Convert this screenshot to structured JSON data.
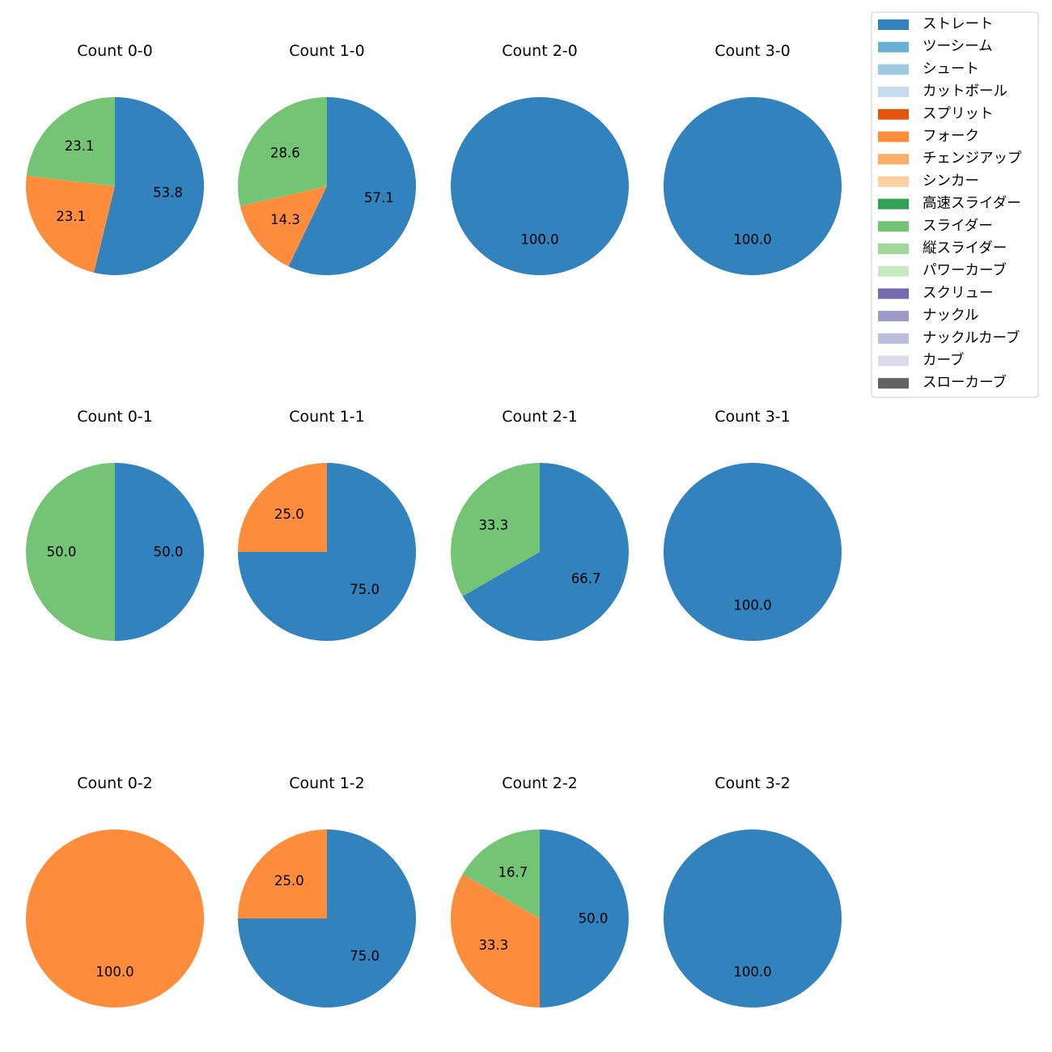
{
  "chart_data": {
    "type": "pie",
    "legend": {
      "placement": "top-right",
      "entries": [
        {
          "label": "ストレート",
          "color": "#3182bd"
        },
        {
          "label": "ツーシーム",
          "color": "#6baed6"
        },
        {
          "label": "シュート",
          "color": "#9ecae1"
        },
        {
          "label": "カットボール",
          "color": "#c6dbef"
        },
        {
          "label": "スプリット",
          "color": "#e6550d"
        },
        {
          "label": "フォーク",
          "color": "#fd8d3c"
        },
        {
          "label": "チェンジアップ",
          "color": "#fdae6b"
        },
        {
          "label": "シンカー",
          "color": "#fdd0a2"
        },
        {
          "label": "高速スライダー",
          "color": "#31a354"
        },
        {
          "label": "スライダー",
          "color": "#74c476"
        },
        {
          "label": "縦スライダー",
          "color": "#a1d99b"
        },
        {
          "label": "パワーカーブ",
          "color": "#c7e9c0"
        },
        {
          "label": "スクリュー",
          "color": "#756bb1"
        },
        {
          "label": "ナックル",
          "color": "#9e9ac8"
        },
        {
          "label": "ナックルカーブ",
          "color": "#bcbddc"
        },
        {
          "label": "カーブ",
          "color": "#dadaeb"
        },
        {
          "label": "スローカーブ",
          "color": "#636363"
        }
      ]
    },
    "charts": [
      {
        "title": "Count 0-0",
        "slices": [
          {
            "pitch": "ストレート",
            "value": 53.8,
            "label": "53.8"
          },
          {
            "pitch": "フォーク",
            "value": 23.1,
            "label": "23.1"
          },
          {
            "pitch": "スライダー",
            "value": 23.1,
            "label": "23.1"
          }
        ]
      },
      {
        "title": "Count 1-0",
        "slices": [
          {
            "pitch": "ストレート",
            "value": 57.1,
            "label": "57.1"
          },
          {
            "pitch": "フォーク",
            "value": 14.3,
            "label": "14.3"
          },
          {
            "pitch": "スライダー",
            "value": 28.6,
            "label": "28.6"
          }
        ]
      },
      {
        "title": "Count 2-0",
        "slices": [
          {
            "pitch": "ストレート",
            "value": 100.0,
            "label": "100.0"
          }
        ]
      },
      {
        "title": "Count 3-0",
        "slices": [
          {
            "pitch": "ストレート",
            "value": 100.0,
            "label": "100.0"
          }
        ]
      },
      {
        "title": "Count 0-1",
        "slices": [
          {
            "pitch": "ストレート",
            "value": 50.0,
            "label": "50.0"
          },
          {
            "pitch": "スライダー",
            "value": 50.0,
            "label": "50.0"
          }
        ]
      },
      {
        "title": "Count 1-1",
        "slices": [
          {
            "pitch": "ストレート",
            "value": 75.0,
            "label": "75.0"
          },
          {
            "pitch": "フォーク",
            "value": 25.0,
            "label": "25.0"
          }
        ]
      },
      {
        "title": "Count 2-1",
        "slices": [
          {
            "pitch": "ストレート",
            "value": 66.7,
            "label": "66.7"
          },
          {
            "pitch": "スライダー",
            "value": 33.3,
            "label": "33.3"
          }
        ]
      },
      {
        "title": "Count 3-1",
        "slices": [
          {
            "pitch": "ストレート",
            "value": 100.0,
            "label": "100.0"
          }
        ]
      },
      {
        "title": "Count 0-2",
        "slices": [
          {
            "pitch": "フォーク",
            "value": 100.0,
            "label": "100.0"
          }
        ]
      },
      {
        "title": "Count 1-2",
        "slices": [
          {
            "pitch": "ストレート",
            "value": 75.0,
            "label": "75.0"
          },
          {
            "pitch": "フォーク",
            "value": 25.0,
            "label": "25.0"
          }
        ]
      },
      {
        "title": "Count 2-2",
        "slices": [
          {
            "pitch": "ストレート",
            "value": 50.0,
            "label": "50.0"
          },
          {
            "pitch": "フォーク",
            "value": 33.3,
            "label": "33.3"
          },
          {
            "pitch": "スライダー",
            "value": 16.7,
            "label": "16.7"
          }
        ]
      },
      {
        "title": "Count 3-2",
        "slices": [
          {
            "pitch": "ストレート",
            "value": 100.0,
            "label": "100.0"
          }
        ]
      }
    ]
  }
}
